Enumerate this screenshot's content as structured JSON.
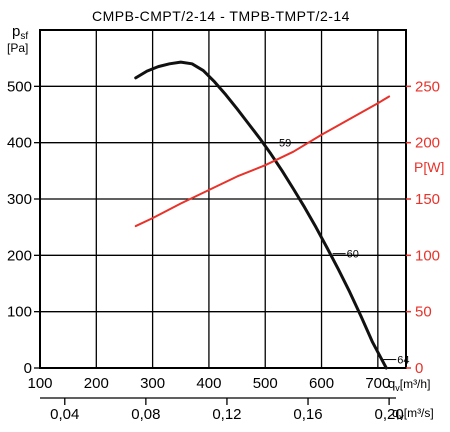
{
  "chart_data": {
    "type": "line",
    "title": "CMPB-CMPT/2-14 - TMPB-TMPT/2-14",
    "x_axis": {
      "label_main": "q",
      "label_sub": "v",
      "label_unit": "[m³/h]",
      "range": [
        100,
        750
      ],
      "ticks": [
        100,
        200,
        300,
        400,
        500,
        600,
        700
      ],
      "tick_labels": [
        "100",
        "200",
        "300",
        "400",
        "500",
        "600",
        "700"
      ]
    },
    "x_axis_secondary": {
      "label_main": "q",
      "label_sub": "v",
      "label_unit": "[m³/s]",
      "ticks": [
        0.04,
        0.08,
        0.12,
        0.16,
        0.2
      ],
      "tick_labels": [
        "0,04",
        "0,08",
        "0,12",
        "0,16",
        "0,20"
      ]
    },
    "y_axis_left": {
      "label_main": "p",
      "label_sub": "sf",
      "label_unit": "[Pa]",
      "range": [
        0,
        600
      ],
      "ticks": [
        0,
        100,
        200,
        300,
        400,
        500
      ],
      "tick_labels": [
        "0",
        "100",
        "200",
        "300",
        "400",
        "500"
      ]
    },
    "y_axis_right": {
      "label": "P[W]",
      "color": "#e8322a",
      "range": [
        0,
        300
      ],
      "ticks": [
        0,
        50,
        100,
        150,
        200,
        250
      ],
      "tick_labels": [
        "0",
        "50",
        "100",
        "150",
        "200",
        "250"
      ]
    },
    "series": [
      {
        "axis": "left",
        "color": "#111111",
        "points": [
          [
            270,
            515
          ],
          [
            290,
            527
          ],
          [
            310,
            535
          ],
          [
            330,
            540
          ],
          [
            350,
            543
          ],
          [
            370,
            540
          ],
          [
            390,
            528
          ],
          [
            410,
            508
          ],
          [
            430,
            485
          ],
          [
            450,
            460
          ],
          [
            470,
            434
          ],
          [
            490,
            408
          ],
          [
            510,
            380
          ],
          [
            530,
            350
          ],
          [
            550,
            318
          ],
          [
            570,
            285
          ],
          [
            590,
            250
          ],
          [
            610,
            213
          ],
          [
            630,
            175
          ],
          [
            650,
            135
          ],
          [
            670,
            92
          ],
          [
            690,
            47
          ],
          [
            715,
            0
          ]
        ]
      },
      {
        "axis": "right",
        "color": "#e8322a",
        "points": [
          [
            270,
            126
          ],
          [
            300,
            133
          ],
          [
            350,
            146
          ],
          [
            400,
            158
          ],
          [
            450,
            170
          ],
          [
            500,
            180
          ],
          [
            550,
            192
          ],
          [
            600,
            207
          ],
          [
            650,
            221
          ],
          [
            700,
            235
          ],
          [
            720,
            241
          ]
        ]
      }
    ],
    "annotations": [
      {
        "text": "59",
        "x": 505,
        "y": 400
      },
      {
        "text": "60",
        "x": 625,
        "y": 203
      },
      {
        "text": "64",
        "x": 715,
        "y": 15
      }
    ],
    "grid": true
  }
}
